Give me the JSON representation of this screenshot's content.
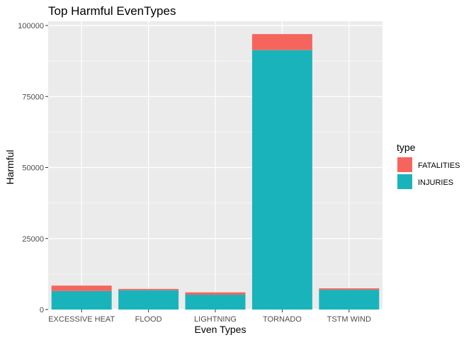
{
  "chart_data": {
    "type": "bar",
    "stacked": true,
    "title": "Top Harmful EvenTypes",
    "xlabel": "Even Types",
    "ylabel": "Harmful",
    "categories": [
      "EXCESSIVE HEAT",
      "FLOOD",
      "LIGHTNING",
      "TORNADO",
      "TSTM WIND"
    ],
    "series": [
      {
        "name": "INJURIES",
        "color": "#19B4BB",
        "values": [
          6525,
          6789,
          5230,
          91346,
          6957
        ]
      },
      {
        "name": "FATALITIES",
        "color": "#F5655E",
        "values": [
          1903,
          470,
          816,
          5633,
          504
        ]
      }
    ],
    "stack_order": [
      "INJURIES",
      "FATALITIES"
    ],
    "ylim": [
      0,
      101500
    ],
    "yticks": [
      0,
      25000,
      50000,
      75000,
      100000
    ],
    "ytick_labels": [
      "0",
      "25000",
      "50000",
      "75000",
      "100000"
    ],
    "grid": true,
    "legend": {
      "title": "type",
      "placement": "right",
      "entries": [
        {
          "label": "FATALITIES",
          "color": "#F5655E"
        },
        {
          "label": "INJURIES",
          "color": "#19B4BB"
        }
      ]
    },
    "panel_background": "#EBEBEB"
  }
}
